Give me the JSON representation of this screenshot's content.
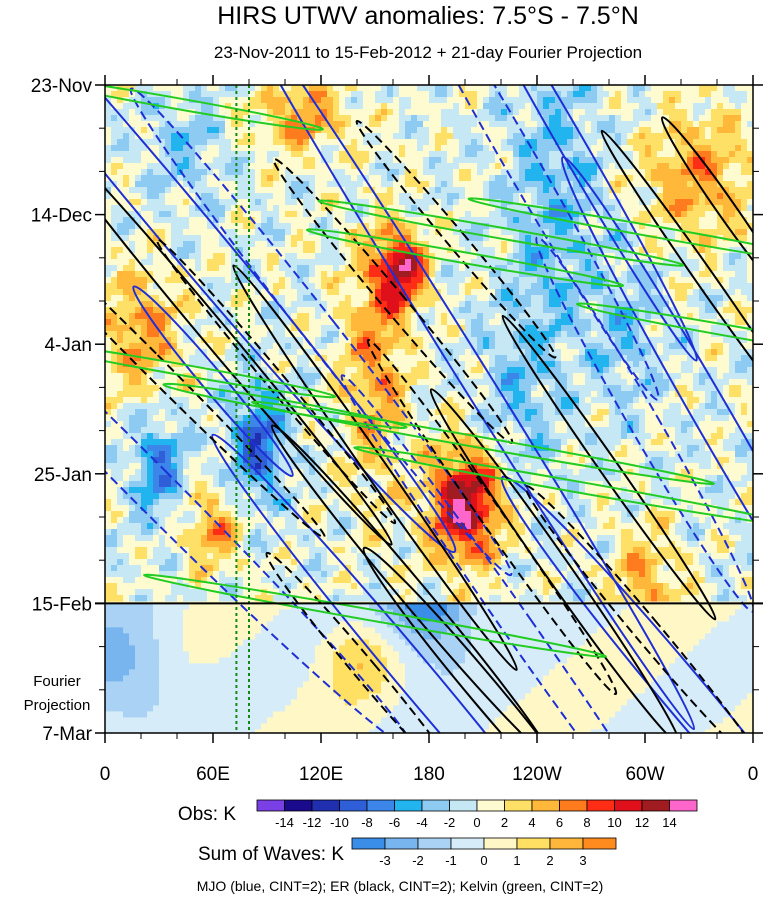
{
  "chart_data": {
    "type": "heatmap",
    "title": "HIRS UTWV anomalies: 7.5°S - 7.5°N",
    "subtitle": "23-Nov-2011 to 15-Feb-2012 + 21-day Fourier Projection",
    "xlabel": "",
    "ylabel": "",
    "x_ticks": [
      "0",
      "60E",
      "120E",
      "180",
      "120W",
      "60W",
      "0"
    ],
    "x_tick_values": [
      0,
      60,
      120,
      180,
      240,
      300,
      360
    ],
    "xlim": [
      0,
      360
    ],
    "y_ticks": [
      "23-Nov",
      "14-Dec",
      "4-Jan",
      "25-Jan",
      "15-Feb",
      "7-Mar"
    ],
    "y_tick_days": [
      0,
      21,
      42,
      63,
      84,
      105
    ],
    "ylim_days": [
      0,
      105
    ],
    "projection_label": [
      "Fourier",
      "Projection"
    ],
    "observation_end_label": "15-Feb",
    "obs_colorbar": {
      "label": "Obs: K",
      "levels": [
        -14,
        -12,
        -10,
        -8,
        -6,
        -4,
        -2,
        0,
        2,
        4,
        6,
        8,
        10,
        12,
        14
      ],
      "colors": [
        "#7b3fe6",
        "#1a0a8c",
        "#1f2fb0",
        "#2e5fd8",
        "#3c86ea",
        "#22b4ee",
        "#8ecbf2",
        "#c6e8f5",
        "#fffbd0",
        "#ffe066",
        "#ffb83a",
        "#ff7c1e",
        "#ff2d16",
        "#e0101a",
        "#a01c20",
        "#ff66cc"
      ]
    },
    "wave_colorbar": {
      "label": "Sum of Waves: K",
      "levels": [
        -3,
        -2,
        -1,
        0,
        1,
        2,
        3
      ],
      "colors": [
        "#3b8ee8",
        "#78b5ee",
        "#a9d2f4",
        "#d6ecf8",
        "#fff7c6",
        "#ffe062",
        "#ffb63a",
        "#ff8a1e"
      ]
    },
    "wave_contours": {
      "note": "MJO (blue, CINT=2); ER (black, CINT=2); Kelvin (green, CINT=2)",
      "mjo_color": "#1e2fd6",
      "er_color": "#000000",
      "kelvin_color": "#22cc22"
    },
    "reference_lines_lon": [
      73,
      80
    ],
    "reference_line_color": "#118a11",
    "mjo_anomalies": [
      {
        "lon": 30,
        "day": 18,
        "value": -3
      },
      {
        "lon": 115,
        "day": 14,
        "value": -4
      },
      {
        "lon": 180,
        "day": 80,
        "value": -5
      },
      {
        "lon": 210,
        "day": 20,
        "value": -3
      },
      {
        "lon": 290,
        "day": 55,
        "value": 3
      }
    ],
    "strong_anomalies": [
      {
        "lon": 165,
        "day": 30,
        "value": 12
      },
      {
        "lon": 200,
        "day": 68,
        "value": 14
      },
      {
        "lon": 85,
        "day": 58,
        "value": -10
      },
      {
        "lon": 30,
        "day": 62,
        "value": -8
      }
    ]
  }
}
